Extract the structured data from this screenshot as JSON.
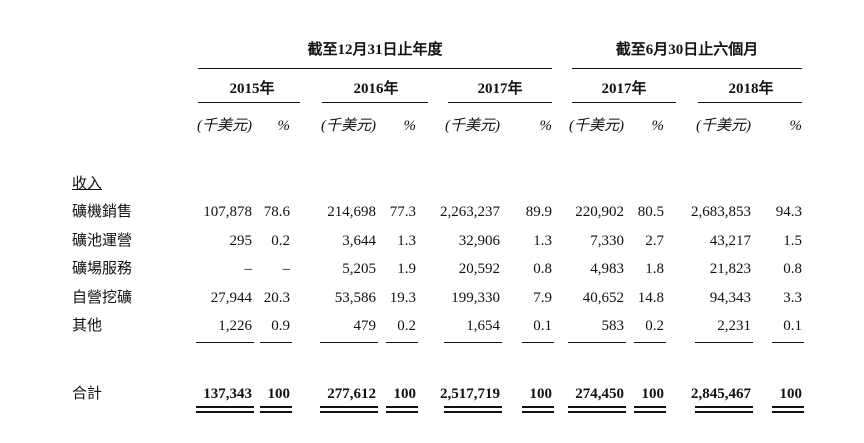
{
  "header": {
    "groups": [
      "截至12月31日止年度",
      "截至6月30日止六個月"
    ],
    "years": [
      {
        "year": "2015年",
        "unit": "(千美元)",
        "pct": "%"
      },
      {
        "year": "2016年",
        "unit": "(千美元)",
        "pct": "%"
      },
      {
        "year": "2017年",
        "unit": "(千美元)",
        "pct": "%"
      },
      {
        "year": "2017年",
        "unit": "(千美元)",
        "pct": "%"
      },
      {
        "year": "2018年",
        "unit": "(千美元)",
        "pct": "%"
      }
    ]
  },
  "table": {
    "section": "收入",
    "rows": [
      [
        "礦機銷售",
        "107,878",
        "78.6",
        "214,698",
        "77.3",
        "2,263,237",
        "89.9",
        "220,902",
        "80.5",
        "2,683,853",
        "94.3"
      ],
      [
        "礦池運營",
        "295",
        "0.2",
        "3,644",
        "1.3",
        "32,906",
        "1.3",
        "7,330",
        "2.7",
        "43,217",
        "1.5"
      ],
      [
        "礦場服務",
        "–",
        "–",
        "5,205",
        "1.9",
        "20,592",
        "0.8",
        "4,983",
        "1.8",
        "21,823",
        "0.8"
      ],
      [
        "自營挖礦",
        "27,944",
        "20.3",
        "53,586",
        "19.3",
        "199,330",
        "7.9",
        "40,652",
        "14.8",
        "94,343",
        "3.3"
      ],
      [
        "其他",
        "1,226",
        "0.9",
        "479",
        "0.2",
        "1,654",
        "0.1",
        "583",
        "0.2",
        "2,231",
        "0.1"
      ]
    ],
    "total": [
      "合計",
      "137,343",
      "100",
      "277,612",
      "100",
      "2,517,719",
      "100",
      "274,450",
      "100",
      "2,845,467",
      "100"
    ]
  }
}
